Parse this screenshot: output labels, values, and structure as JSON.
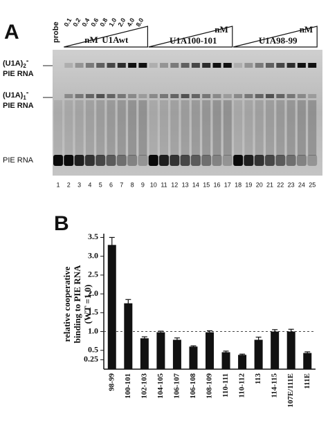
{
  "panel_a": {
    "label": "A",
    "probe": "probe",
    "concentrations": [
      "0.1",
      "0.2",
      "0.4",
      "0.6",
      "0.8",
      "1.0",
      "2.0",
      "4.0",
      "8.0"
    ],
    "titrations": [
      {
        "unit": "nM",
        "protein": "U1Awt"
      },
      {
        "unit": "nM",
        "protein": "U1A100-101"
      },
      {
        "unit": "nM",
        "protein": "U1A98-99"
      }
    ],
    "bands": [
      {
        "text": "(U1A)",
        "sub": "2",
        "sup": "-",
        "line2": "PIE RNA"
      },
      {
        "text": "(U1A)",
        "sub": "1",
        "sup": "-",
        "line2": "PIE RNA"
      },
      {
        "text": "PIE RNA"
      }
    ],
    "lanes": [
      1,
      2,
      3,
      4,
      5,
      6,
      7,
      8,
      9,
      10,
      11,
      12,
      13,
      14,
      15,
      16,
      17,
      18,
      19,
      20,
      21,
      22,
      23,
      24,
      25
    ]
  },
  "panel_b": {
    "label": "B"
  },
  "chart_data": {
    "type": "bar",
    "ylabel": [
      "relative cooperative",
      "binding to PIE RNA",
      "(WT =1.0)"
    ],
    "categories": [
      "98-99",
      "100-101",
      "102-103",
      "104-105",
      "106-107",
      "106-108",
      "108-109",
      "110-111",
      "110-112",
      "113",
      "114-115",
      "107E/111E",
      "111E"
    ],
    "values": [
      3.3,
      1.75,
      0.82,
      0.98,
      0.78,
      0.6,
      0.98,
      0.45,
      0.38,
      0.78,
      1.0,
      1.0,
      0.43
    ],
    "errors": [
      0.2,
      0.1,
      0.04,
      0.03,
      0.05,
      0.02,
      0.04,
      0.03,
      0.02,
      0.07,
      0.05,
      0.06,
      0.03
    ],
    "color": "#111111",
    "ylim": [
      0,
      3.6
    ],
    "yticks": [
      0.25,
      0.5,
      {
        "value": 1,
        "label": "1.0"
      },
      1.5,
      {
        "value": 2,
        "label": "2.0"
      },
      2.5,
      {
        "value": 3,
        "label": "3.0"
      },
      3.5
    ],
    "reference_line": 1
  }
}
